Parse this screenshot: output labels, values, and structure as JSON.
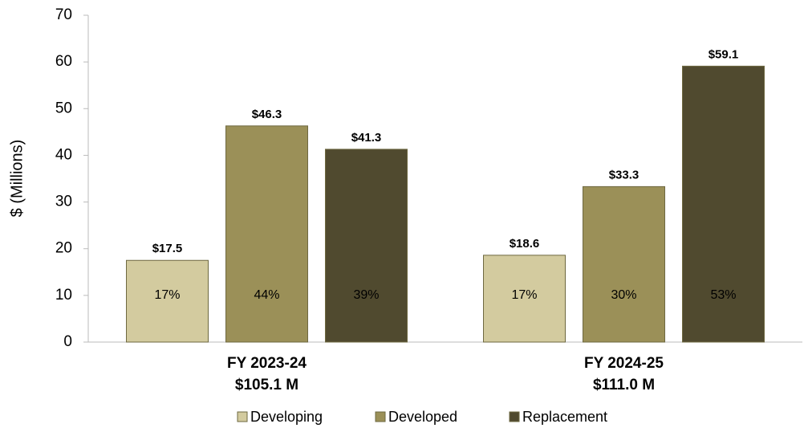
{
  "chart_data": {
    "type": "bar",
    "y_axis_label": "$ (Millions)",
    "categories": [
      "FY 2023-24",
      "FY 2024-25"
    ],
    "category_total_labels": [
      "$105.1 M",
      "$111.0 M"
    ],
    "series": [
      {
        "name": "Developing",
        "color": "#d3cb9f",
        "values": [
          17.5,
          18.6
        ],
        "value_labels": [
          "$17.5",
          "$18.6"
        ],
        "share_labels": [
          "17%",
          "17%"
        ]
      },
      {
        "name": "Developed",
        "color": "#9b9058",
        "values": [
          46.3,
          33.3
        ],
        "value_labels": [
          "$46.3",
          "$33.3"
        ],
        "share_labels": [
          "44%",
          "30%"
        ]
      },
      {
        "name": "Replacement",
        "color": "#504a2f",
        "values": [
          41.3,
          59.1
        ],
        "value_labels": [
          "$41.3",
          "$59.1"
        ],
        "share_labels": [
          "39%",
          "53%"
        ]
      }
    ],
    "ylim": [
      0,
      70
    ],
    "yticks": [
      0,
      10,
      20,
      30,
      40,
      50,
      60,
      70
    ],
    "grid": false,
    "legend": "bottom"
  }
}
